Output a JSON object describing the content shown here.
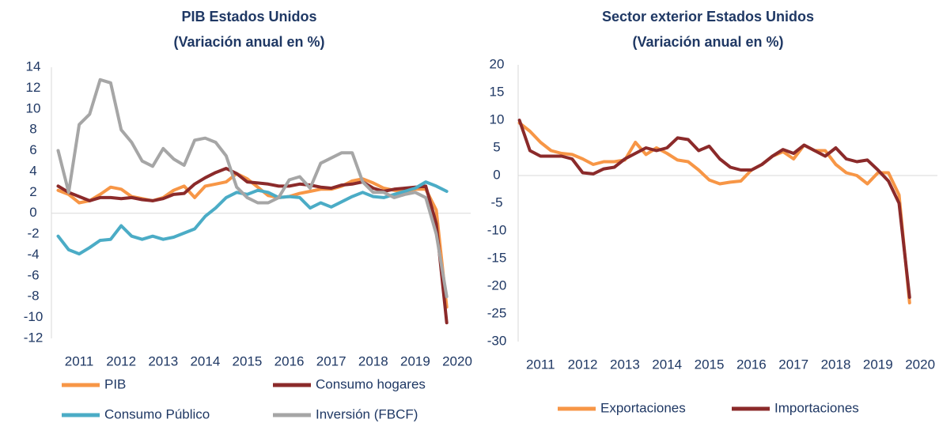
{
  "chart_data": [
    {
      "type": "line",
      "title": "PIB Estados Unidos",
      "subtitle": "(Variación anual en %)",
      "x": [
        2010.5,
        2010.75,
        2011,
        2011.25,
        2011.5,
        2011.75,
        2012,
        2012.25,
        2012.5,
        2012.75,
        2013,
        2013.25,
        2013.5,
        2013.75,
        2014,
        2014.25,
        2014.5,
        2014.75,
        2015,
        2015.25,
        2015.5,
        2015.75,
        2016,
        2016.25,
        2016.5,
        2016.75,
        2017,
        2017.25,
        2017.5,
        2017.75,
        2018,
        2018.25,
        2018.5,
        2018.75,
        2019,
        2019.25,
        2019.5,
        2019.75
      ],
      "xlim": [
        2010.34,
        2020.32
      ],
      "xticks": [
        2011,
        2012,
        2013,
        2014,
        2015,
        2016,
        2017,
        2018,
        2019,
        2020
      ],
      "ylim": [
        -12,
        14
      ],
      "yticks": [
        -12,
        -10,
        -8,
        -6,
        -4,
        -2,
        0,
        2,
        4,
        6,
        8,
        10,
        12,
        14
      ],
      "series": [
        {
          "name": "PIB",
          "color": "#f79646",
          "values": [
            2.2,
            1.8,
            1.0,
            1.2,
            1.8,
            2.5,
            2.3,
            1.6,
            1.4,
            1.2,
            1.5,
            2.2,
            2.6,
            1.5,
            2.6,
            2.8,
            3.0,
            3.8,
            3.3,
            2.5,
            1.7,
            1.5,
            1.6,
            1.9,
            2.1,
            2.3,
            2.3,
            2.6,
            3.1,
            3.3,
            2.9,
            2.4,
            2.2,
            2.1,
            2.3,
            2.3,
            0.3,
            -9.0
          ]
        },
        {
          "name": "Consumo hogares",
          "color": "#8b2a2a",
          "values": [
            2.6,
            2.0,
            1.6,
            1.2,
            1.5,
            1.5,
            1.4,
            1.5,
            1.3,
            1.2,
            1.4,
            1.8,
            1.9,
            2.8,
            3.4,
            3.9,
            4.3,
            3.8,
            3.0,
            2.9,
            2.8,
            2.6,
            2.6,
            2.8,
            2.7,
            2.5,
            2.4,
            2.7,
            2.8,
            3.0,
            2.4,
            2.1,
            2.3,
            2.4,
            2.5,
            2.6,
            -1.0,
            -10.5
          ]
        },
        {
          "name": "Consumo Público",
          "color": "#4bacc6",
          "values": [
            -2.2,
            -3.5,
            -3.9,
            -3.3,
            -2.6,
            -2.5,
            -1.2,
            -2.2,
            -2.5,
            -2.2,
            -2.5,
            -2.3,
            -1.9,
            -1.5,
            -0.3,
            0.5,
            1.5,
            2.0,
            1.8,
            2.2,
            2.0,
            1.5,
            1.6,
            1.5,
            0.5,
            1.0,
            0.6,
            1.1,
            1.6,
            2.0,
            1.6,
            1.5,
            1.8,
            2.1,
            2.4,
            3.0,
            2.6,
            2.1
          ]
        },
        {
          "name": "Inversión (FBCF)",
          "color": "#a6a6a6",
          "values": [
            6.0,
            2.0,
            8.5,
            9.5,
            12.8,
            12.5,
            8.0,
            6.8,
            5.0,
            4.5,
            6.2,
            5.2,
            4.6,
            7.0,
            7.2,
            6.8,
            5.5,
            2.5,
            1.5,
            1.0,
            1.0,
            1.5,
            3.2,
            3.5,
            2.4,
            4.8,
            5.3,
            5.8,
            5.8,
            3.0,
            2.0,
            2.0,
            1.5,
            1.8,
            2.0,
            1.5,
            -2.0,
            -8.0
          ]
        }
      ]
    },
    {
      "type": "line",
      "title": "Sector exterior  Estados Unidos",
      "subtitle": "(Variación anual en %)",
      "x": [
        2010.5,
        2010.75,
        2011,
        2011.25,
        2011.5,
        2011.75,
        2012,
        2012.25,
        2012.5,
        2012.75,
        2013,
        2013.25,
        2013.5,
        2013.75,
        2014,
        2014.25,
        2014.5,
        2014.75,
        2015,
        2015.25,
        2015.5,
        2015.75,
        2016,
        2016.25,
        2016.5,
        2016.75,
        2017,
        2017.25,
        2017.5,
        2017.75,
        2018,
        2018.25,
        2018.5,
        2018.75,
        2019,
        2019.25,
        2019.5,
        2019.75
      ],
      "xlim": [
        2010.47,
        2020.41
      ],
      "xticks": [
        2011,
        2012,
        2013,
        2014,
        2015,
        2016,
        2017,
        2018,
        2019,
        2020
      ],
      "ylim": [
        -30,
        20
      ],
      "yticks": [
        -30,
        -25,
        -20,
        -15,
        -10,
        -5,
        0,
        5,
        10,
        15,
        20
      ],
      "series": [
        {
          "name": "Exportaciones",
          "color": "#f79646",
          "values": [
            9.5,
            8.0,
            6.0,
            4.5,
            4.0,
            3.8,
            3.0,
            2.0,
            2.5,
            2.5,
            2.8,
            6.0,
            3.8,
            5.0,
            4.0,
            2.8,
            2.5,
            1.0,
            -0.8,
            -1.5,
            -1.2,
            -1.0,
            1.0,
            2.0,
            3.5,
            4.3,
            3.0,
            5.5,
            4.5,
            4.5,
            2.0,
            0.5,
            0.0,
            -1.5,
            0.5,
            0.5,
            -3.5,
            -23.0
          ]
        },
        {
          "name": "Importaciones",
          "color": "#8b2a2a",
          "values": [
            10.0,
            4.5,
            3.5,
            3.5,
            3.5,
            3.0,
            0.5,
            0.3,
            1.2,
            1.5,
            3.0,
            4.0,
            5.0,
            4.5,
            5.0,
            6.8,
            6.5,
            4.5,
            5.3,
            3.0,
            1.5,
            1.0,
            1.0,
            2.0,
            3.5,
            4.7,
            4.0,
            5.5,
            4.5,
            3.5,
            5.0,
            3.0,
            2.5,
            2.8,
            1.0,
            -1.0,
            -5.0,
            -22.0
          ]
        }
      ]
    }
  ]
}
